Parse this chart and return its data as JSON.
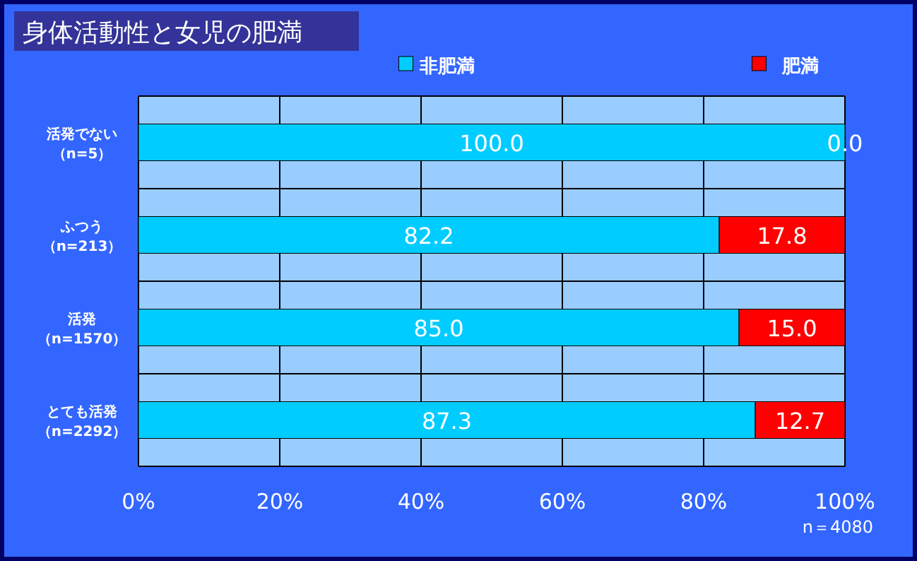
{
  "chart_data": {
    "type": "bar",
    "orientation": "horizontal",
    "stacked": true,
    "title": "身体活動性と女児の肥満",
    "categories": [
      "活発でない（n=5）",
      "ふつう（n=213）",
      "活発（n=1570）",
      "とても活発（n=2292）"
    ],
    "series": [
      {
        "name": "非肥満",
        "color": "#00ccff",
        "values": [
          100.0,
          82.2,
          85.0,
          87.3
        ],
        "value_labels": [
          "100.0",
          "82.2",
          "85.0",
          "87.3"
        ]
      },
      {
        "name": "肥満",
        "color": "#ff0000",
        "values": [
          0.0,
          17.8,
          15.0,
          12.7
        ],
        "value_labels": [
          "0.0",
          "17.8",
          "15.0",
          "12.7"
        ]
      }
    ],
    "xlim": [
      0,
      100
    ],
    "xticks": [
      {
        "value": 0,
        "label": "0%"
      },
      {
        "value": 20,
        "label": "20%"
      },
      {
        "value": 40,
        "label": "40%"
      },
      {
        "value": 60,
        "label": "60%"
      },
      {
        "value": 80,
        "label": "80%"
      },
      {
        "value": 100,
        "label": "100%"
      }
    ],
    "grid": true,
    "legend": "top",
    "annotations": [
      "n＝4080"
    ]
  }
}
